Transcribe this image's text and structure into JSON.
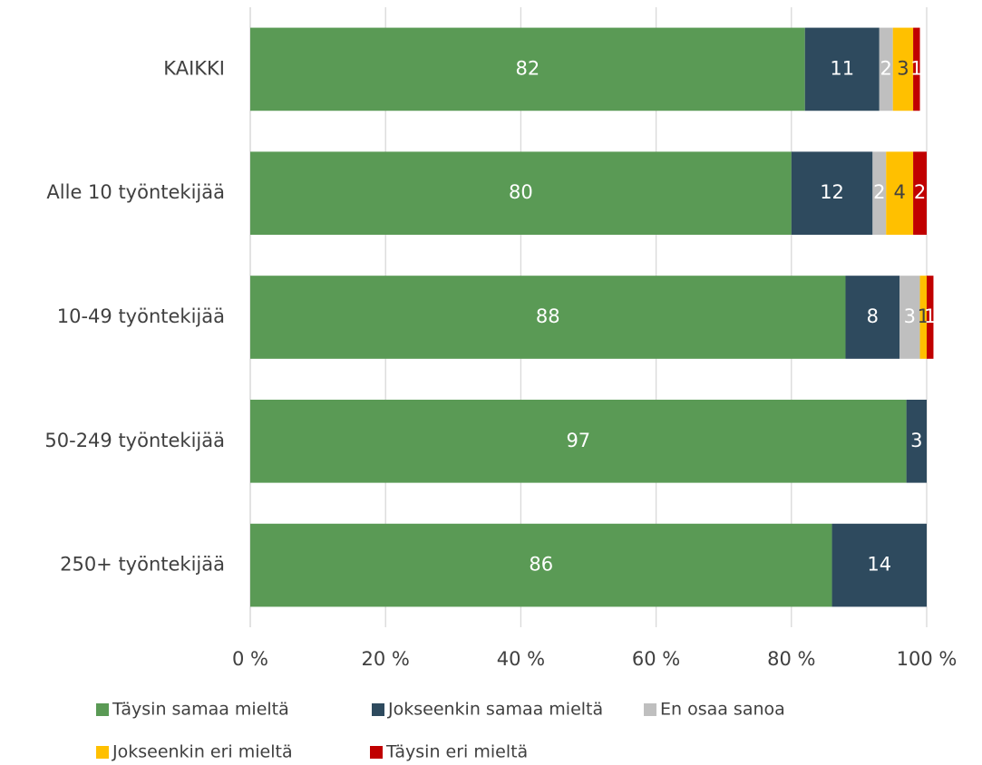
{
  "chart_data": {
    "type": "stacked_bar_horizontal",
    "categories": [
      "KAIKKI",
      "Alle 10 työntekijää",
      "10-49 työntekijää",
      "50-249 työntekijää",
      "250+ työntekijää"
    ],
    "series": [
      {
        "name": "Täysin samaa mieltä",
        "color": "#5a9a55",
        "values": [
          82,
          80,
          88,
          97,
          86
        ]
      },
      {
        "name": "Jokseenkin samaa mieltä",
        "color": "#2e4a5e",
        "values": [
          11,
          12,
          8,
          3,
          14
        ]
      },
      {
        "name": "En osaa sanoa",
        "color": "#bfbfbf",
        "values": [
          2,
          2,
          3,
          null,
          null
        ]
      },
      {
        "name": "Jokseenkin eri mieltä",
        "color": "#ffc000",
        "values": [
          3,
          4,
          1,
          null,
          null
        ]
      },
      {
        "name": "Täysin eri mieltä",
        "color": "#c00000",
        "values": [
          1,
          2,
          1,
          null,
          null
        ]
      }
    ],
    "xlim": [
      0,
      100
    ],
    "xticks": [
      {
        "value": 0,
        "label": "0 %"
      },
      {
        "value": 20,
        "label": "20 %"
      },
      {
        "value": 40,
        "label": "40 %"
      },
      {
        "value": 60,
        "label": "60 %"
      },
      {
        "value": 80,
        "label": "80 %"
      },
      {
        "value": 100,
        "label": "100 %"
      }
    ],
    "grid": true,
    "legend": "bottom"
  }
}
